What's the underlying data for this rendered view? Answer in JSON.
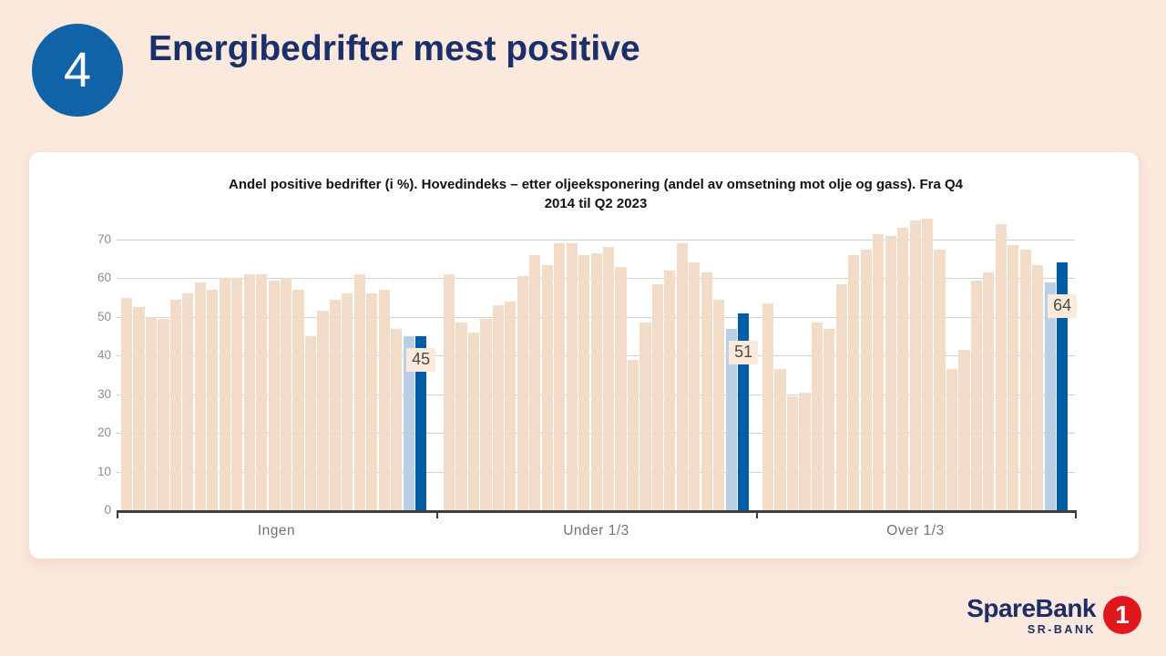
{
  "page": {
    "slide_number": "4",
    "title": "Energibedrifter mest positive"
  },
  "chart_data": {
    "type": "bar",
    "title": "Andel positive bedrifter (i %). Hovedindeks – etter oljeeksponering (andel av omsetning mot olje og gass). Fra Q4 2014 til Q2 2023",
    "xlabel": "",
    "ylabel": "",
    "ylim": [
      0,
      70
    ],
    "yticks": [
      0,
      10,
      20,
      30,
      40,
      50,
      60,
      70
    ],
    "grid": true,
    "legend": "none",
    "bars_per_group": 25,
    "groups": [
      {
        "label": "Ingen",
        "value_label": 45,
        "values": [
          55,
          52.5,
          50,
          49.5,
          54.5,
          56,
          59,
          57,
          60,
          60,
          61,
          61,
          59.5,
          60,
          57,
          45,
          51.5,
          54.5,
          56,
          61,
          56,
          57,
          47,
          45,
          45
        ]
      },
      {
        "label": "Under 1/3",
        "value_label": 51,
        "values": [
          61,
          48.5,
          46,
          49.5,
          53,
          54,
          60.5,
          66,
          63.5,
          69,
          69,
          66,
          66.5,
          68,
          63,
          39,
          48.5,
          58.5,
          62,
          69,
          64,
          61.5,
          54.5,
          47,
          51
        ]
      },
      {
        "label": "Over 1/3",
        "value_label": 64,
        "values": [
          53.5,
          36.5,
          29.5,
          30.5,
          48.5,
          47,
          58.5,
          66,
          67.5,
          71.5,
          71,
          73,
          75,
          75.5,
          67.5,
          36.5,
          41.5,
          59.5,
          61.5,
          74,
          68.5,
          67.5,
          63.5,
          59,
          64
        ]
      }
    ],
    "highlight": {
      "previous_quarter_index": 23,
      "latest_quarter_index": 24
    },
    "colors": {
      "default_bar": "#f3dcc7",
      "previous_quarter_bar": "#b9cfe6",
      "latest_quarter_bar": "#005da6",
      "grid": "#cdd5ca",
      "axis": "#3d3d3d",
      "value_label_bg": "#fbeadb",
      "value_label_text": "#4c4c4c"
    }
  },
  "logo": {
    "brand": "SpareBank",
    "one": "1",
    "unit": "SR-BANK"
  }
}
